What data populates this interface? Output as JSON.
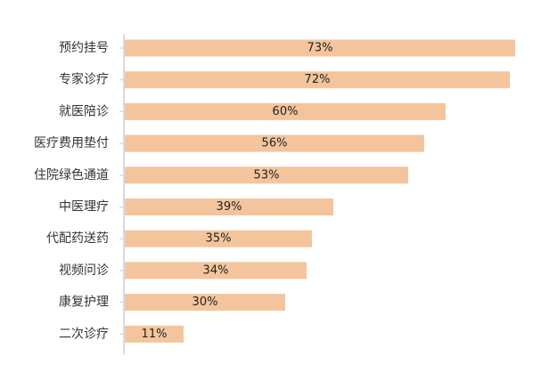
{
  "chart_data": {
    "type": "bar",
    "orientation": "horizontal",
    "categories": [
      "预约挂号",
      "专家诊疗",
      "就医陪诊",
      "医疗费用垫付",
      "住院绿色通道",
      "中医理疗",
      "代配药送药",
      "视频问诊",
      "康复护理",
      "二次诊疗"
    ],
    "values": [
      73,
      72,
      60,
      56,
      53,
      39,
      35,
      34,
      30,
      11
    ],
    "value_labels": [
      "73%",
      "72%",
      "60%",
      "56%",
      "53%",
      "39%",
      "35%",
      "34%",
      "30%",
      "11%"
    ],
    "xlim": [
      0,
      73
    ],
    "grid": false,
    "legend": "none",
    "bar_color": "#F4C59C",
    "axis_color": "#C7CFDA",
    "tick_color": "#C7CFDA",
    "label_color": "#333333"
  }
}
